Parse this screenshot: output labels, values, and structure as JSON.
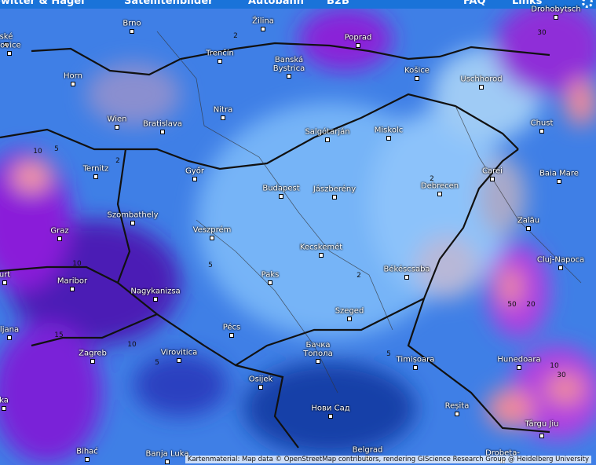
{
  "nav": {
    "items": [
      "ewitter & Hagel",
      "Satellitenbilder",
      "Autobahn",
      "B2B",
      "FAQ",
      "Links"
    ]
  },
  "map": {
    "places": [
      "ské",
      "lovice",
      "Brno",
      "Žilina",
      "Poprad",
      "Drohobytsch",
      "Trenčín",
      "Banská Bystrica",
      "Košice",
      "Uschhorod",
      "Horn",
      "Wien",
      "Bratislava",
      "Nitra",
      "Salgótarján",
      "Miskolc",
      "Chust",
      "Ternitz",
      "Győr",
      "Budapest",
      "Jászberény",
      "Debrecen",
      "Carei",
      "Baia Mare",
      "Szombathely",
      "Veszprém",
      "Graz",
      "Zalău",
      "Kecskemét",
      "Cluj-Napoca",
      "Paks",
      "Békéscsaba",
      "urt",
      "Maribor",
      "Nagykanizsa",
      "Szeged",
      "ljana",
      "Pécs",
      "Zagreb",
      "Virovitica",
      "Бачка Топола",
      "Timișoara",
      "Hunedoara",
      "Osijek",
      "Нови Сад",
      "Reșita",
      "ka",
      "Târgu Jiu",
      "Bihać",
      "Banja Luka",
      "Belgrad",
      "Drobeta-"
    ],
    "contour_labels": [
      "2",
      "30",
      "2",
      "5",
      "10",
      "2",
      "2",
      "5",
      "10",
      "5",
      "5",
      "10",
      "15",
      "50",
      "20",
      "10",
      "30"
    ],
    "attribution": "Kartenmaterial: Map data © OpenStreetMap contributors, rendering GIScience Research Group @ Heidelberg University"
  }
}
